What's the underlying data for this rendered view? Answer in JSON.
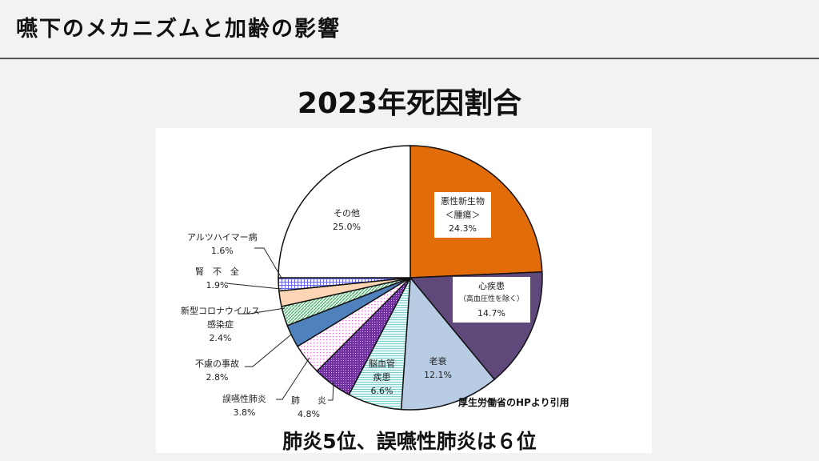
{
  "header": {
    "title": "嚥下のメカニズムと加齢の影響"
  },
  "chart_data": {
    "type": "pie",
    "title": "2023年死因割合",
    "start": "top",
    "direction": "clockwise",
    "slices": [
      {
        "label": "悪性新生物",
        "sub": "＜腫瘍＞",
        "value": 24.3,
        "value_label": "24.3%",
        "color": "#e36c0a",
        "pattern": "solid"
      },
      {
        "label": "心疾患",
        "sub": "（高血圧性を除く）",
        "value": 14.7,
        "value_label": "14.7%",
        "color": "#5f497a",
        "pattern": "solid"
      },
      {
        "label": "老衰",
        "value": 12.1,
        "value_label": "12.1%",
        "color": "#b8cce4",
        "pattern": "solid"
      },
      {
        "label": "脳血管",
        "sub": "疾患",
        "value": 6.6,
        "value_label": "6.6%",
        "color": "#bfeeee",
        "pattern": "hlines"
      },
      {
        "label": "肺　　炎",
        "value": 4.8,
        "value_label": "4.8%",
        "color": "#7030a0",
        "pattern": "dots-dark"
      },
      {
        "label": "誤嚥性肺炎",
        "value": 3.8,
        "value_label": "3.8%",
        "color": "#ff8cf0",
        "pattern": "dots-light"
      },
      {
        "label": "不慮の事故",
        "value": 2.8,
        "value_label": "2.8%",
        "color": "#4f81bd",
        "pattern": "solid"
      },
      {
        "label": "新型コロナウイルス",
        "sub": "感染症",
        "value": 2.4,
        "value_label": "2.4%",
        "color": "#4aa86a",
        "pattern": "diag"
      },
      {
        "label": "腎　不　全",
        "value": 1.9,
        "value_label": "1.9%",
        "color": "#fcd5b4",
        "pattern": "solid"
      },
      {
        "label": "アルツハイマー病",
        "value": 1.6,
        "value_label": "1.6%",
        "color": "#6666ff",
        "pattern": "grid"
      },
      {
        "label": "その他",
        "value": 25.0,
        "value_label": "25.0%",
        "color": "#ffffff",
        "pattern": "solid"
      }
    ]
  },
  "source": "厚生労働省のHPより引用",
  "caption": "肺炎5位、誤嚥性肺炎は６位"
}
